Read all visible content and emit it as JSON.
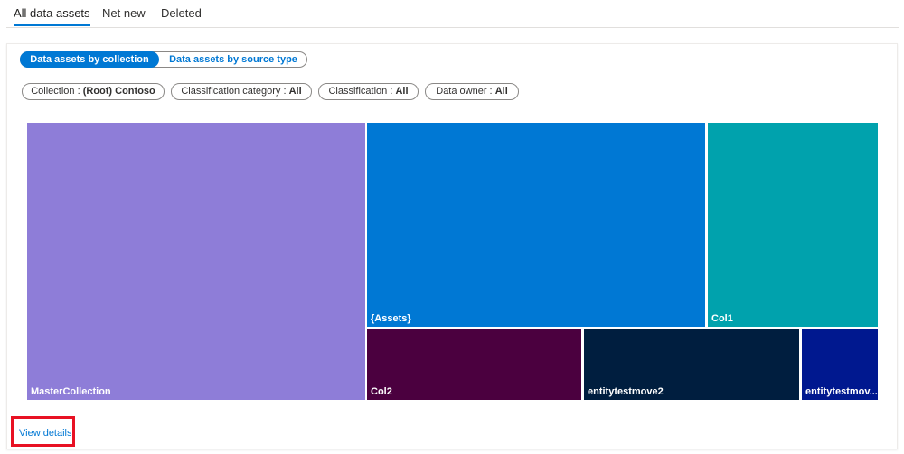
{
  "tabs": [
    "All data assets",
    "Net new",
    "Deleted"
  ],
  "toggle": [
    "Data assets by collection",
    "Data assets by source type"
  ],
  "filters": [
    {
      "label": "Collection :",
      "value": "(Root) Contoso"
    },
    {
      "label": "Classification category :",
      "value": "All"
    },
    {
      "label": "Classification :",
      "value": "All"
    },
    {
      "label": "Data owner :",
      "value": "All"
    }
  ],
  "treemap": {
    "tiles": [
      "MasterCollection",
      "{Assets}",
      "Col1",
      "Col2",
      "entitytestmove2",
      "entitytestmov..."
    ]
  },
  "link": "View details"
}
